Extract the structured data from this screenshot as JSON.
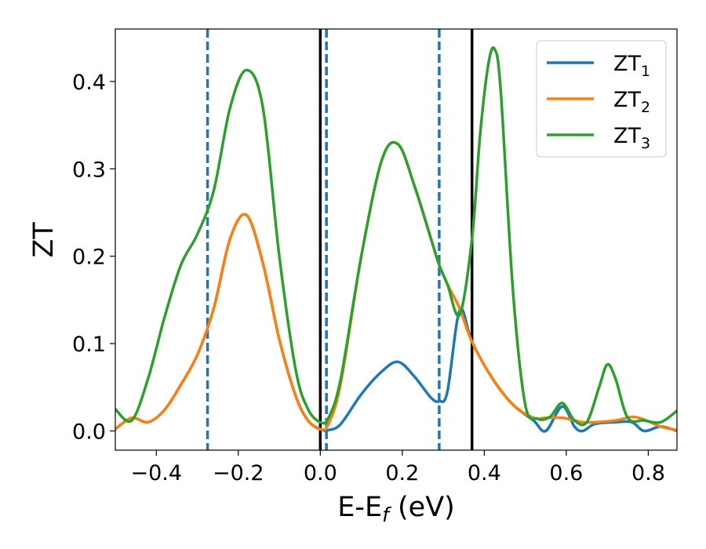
{
  "chart_data": {
    "type": "line",
    "title": "",
    "xlabel": "E-E",
    "xlabel_sub": "f",
    "xlabel_unit": " (eV)",
    "ylabel": "ZT",
    "xlim": [
      -0.5,
      0.87
    ],
    "ylim": [
      -0.022,
      0.46
    ],
    "xticks": [
      -0.4,
      -0.2,
      0.0,
      0.2,
      0.4,
      0.6,
      0.8
    ],
    "xtick_labels": [
      "−0.4",
      "−0.2",
      "0.0",
      "0.2",
      "0.4",
      "0.6",
      "0.8"
    ],
    "yticks": [
      0.0,
      0.1,
      0.2,
      0.3,
      0.4
    ],
    "ytick_labels": [
      "0.0",
      "0.1",
      "0.2",
      "0.3",
      "0.4"
    ],
    "grid": false,
    "legend_position": "top-right",
    "vlines_dashed": {
      "x": [
        -0.275,
        0.015,
        0.29
      ],
      "color": "#1f77b4"
    },
    "vlines_solid": {
      "x": [
        0.0,
        0.37
      ],
      "color": "#000000"
    },
    "series": [
      {
        "name": "ZT",
        "sub": "1",
        "color": "#1f77b4",
        "x": [
          -0.5,
          -0.46,
          -0.42,
          -0.38,
          -0.34,
          -0.3,
          -0.26,
          -0.22,
          -0.18,
          -0.14,
          -0.1,
          -0.06,
          -0.03,
          0.0,
          0.02,
          0.05,
          0.1,
          0.15,
          0.19,
          0.23,
          0.27,
          0.29,
          0.31,
          0.34,
          0.37,
          0.42,
          0.47,
          0.52,
          0.55,
          0.59,
          0.62,
          0.64,
          0.67,
          0.72,
          0.76,
          0.79,
          0.83,
          0.87
        ],
        "y": [
          0.002,
          0.015,
          0.01,
          0.024,
          0.053,
          0.087,
          0.14,
          0.22,
          0.247,
          0.192,
          0.105,
          0.04,
          0.012,
          0.002,
          0.001,
          0.008,
          0.042,
          0.068,
          0.079,
          0.062,
          0.038,
          0.034,
          0.045,
          0.138,
          0.102,
          0.06,
          0.03,
          0.012,
          0.0,
          0.028,
          0.005,
          0.0,
          0.008,
          0.01,
          0.01,
          0.0,
          0.005,
          0.0
        ]
      },
      {
        "name": "ZT",
        "sub": "2",
        "color": "#ff7f0e",
        "x": [
          -0.5,
          -0.46,
          -0.42,
          -0.38,
          -0.34,
          -0.3,
          -0.26,
          -0.22,
          -0.18,
          -0.14,
          -0.1,
          -0.06,
          -0.03,
          0.0,
          0.02,
          0.05,
          0.1,
          0.15,
          0.19,
          0.23,
          0.27,
          0.29,
          0.31,
          0.34,
          0.37,
          0.42,
          0.47,
          0.52,
          0.55,
          0.59,
          0.62,
          0.64,
          0.67,
          0.72,
          0.76,
          0.79,
          0.83,
          0.87
        ],
        "y": [
          0.002,
          0.015,
          0.01,
          0.024,
          0.053,
          0.087,
          0.14,
          0.22,
          0.247,
          0.192,
          0.105,
          0.04,
          0.012,
          0.002,
          0.008,
          0.055,
          0.2,
          0.31,
          0.328,
          0.28,
          0.22,
          0.19,
          0.168,
          0.14,
          0.102,
          0.06,
          0.03,
          0.015,
          0.015,
          0.015,
          0.012,
          0.01,
          0.01,
          0.012,
          0.016,
          0.013,
          0.005,
          0.001
        ]
      },
      {
        "name": "ZT",
        "sub": "3",
        "color": "#2ca02c",
        "x": [
          -0.5,
          -0.46,
          -0.42,
          -0.38,
          -0.34,
          -0.3,
          -0.26,
          -0.22,
          -0.18,
          -0.14,
          -0.1,
          -0.06,
          -0.03,
          0.0,
          0.02,
          0.05,
          0.1,
          0.15,
          0.19,
          0.23,
          0.27,
          0.29,
          0.31,
          0.34,
          0.37,
          0.39,
          0.41,
          0.425,
          0.44,
          0.47,
          0.5,
          0.53,
          0.56,
          0.59,
          0.62,
          0.65,
          0.68,
          0.7,
          0.72,
          0.75,
          0.79,
          0.83,
          0.87
        ],
        "y": [
          0.025,
          0.012,
          0.06,
          0.13,
          0.19,
          0.225,
          0.275,
          0.37,
          0.413,
          0.37,
          0.2,
          0.07,
          0.025,
          0.01,
          0.015,
          0.06,
          0.2,
          0.31,
          0.328,
          0.28,
          0.22,
          0.19,
          0.168,
          0.133,
          0.22,
          0.34,
          0.42,
          0.437,
          0.39,
          0.16,
          0.03,
          0.014,
          0.016,
          0.032,
          0.012,
          0.01,
          0.05,
          0.076,
          0.06,
          0.015,
          0.012,
          0.01,
          0.023
        ]
      }
    ]
  }
}
